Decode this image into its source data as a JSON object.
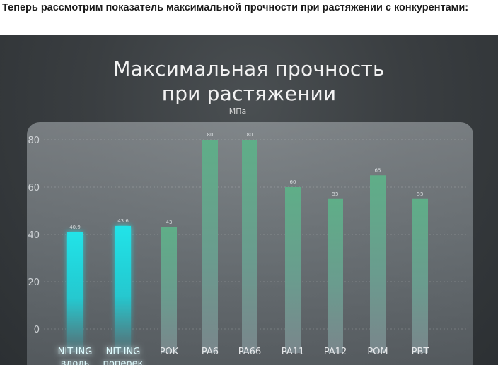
{
  "page": {
    "heading": "Теперь рассмотрим показатель максимальной прочности при растяжении с конкурентами:"
  },
  "slide": {
    "title_line1": "Максимальная прочность",
    "title_line2": "при растяжении",
    "unit": "МПа"
  },
  "colors": {
    "highlight": "#22e3e8",
    "competitor": "#5fae88",
    "panel": "#7f878c",
    "tick": "#cfd3d6"
  },
  "chart_data": {
    "type": "bar",
    "title": "Максимальная прочность при растяжении",
    "ylabel": "МПа",
    "ylim": [
      0,
      80
    ],
    "yticks": [
      0,
      20,
      40,
      60,
      80
    ],
    "categories": [
      "NIT-ING вдоль",
      "NIT-ING поперек",
      "POK",
      "PA6",
      "PA66",
      "PA11",
      "PA12",
      "POM",
      "PBT"
    ],
    "category_labels_visible": [
      "NIT-ING\nвдоль",
      "NIT-ING\nпоперек",
      "POK",
      "PA6",
      "PA66",
      "PA11",
      "PA12",
      "POM",
      "PBT"
    ],
    "values": [
      40.9,
      43.6,
      43,
      80,
      80,
      60,
      55,
      65,
      55
    ],
    "value_labels": [
      "40.9",
      "43.6",
      "43",
      "80",
      "80",
      "60",
      "55",
      "65",
      "55"
    ],
    "highlighted": [
      true,
      true,
      false,
      false,
      false,
      false,
      false,
      false,
      false
    ],
    "grid": true,
    "legend": "none"
  }
}
